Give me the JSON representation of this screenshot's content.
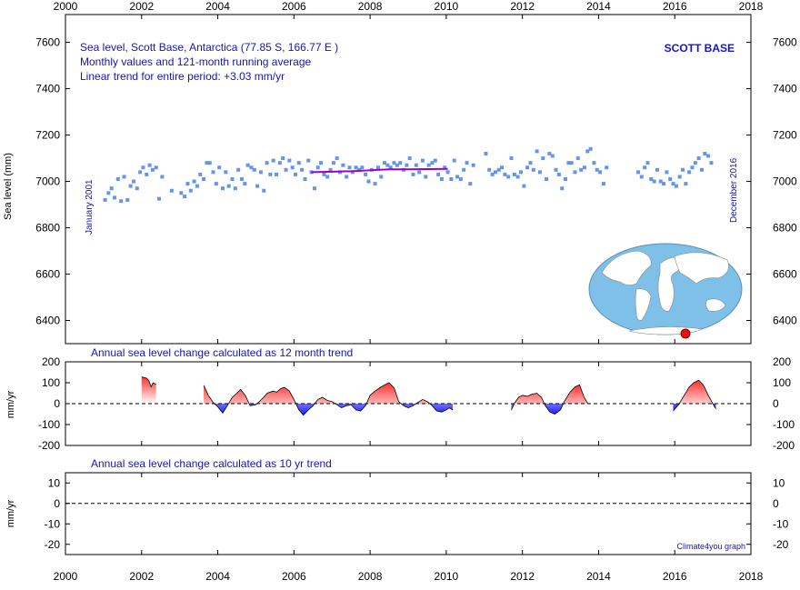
{
  "chart_data": [
    {
      "type": "scatter",
      "title": "Sea level, Scott Base, Antarctica (77.85 S, 166.77 E )",
      "subtitle": "Monthly values and 121-month running average",
      "trend_text": "Linear trend for entire period: +3.03 mm/yr",
      "station_label": "SCOTT BASE",
      "start_label": "January 2001",
      "end_label": "December 2016",
      "ylabel": "Sea level (mm)",
      "xlim": [
        2000,
        2018
      ],
      "ylim": [
        6300,
        7720
      ],
      "x_ticks": [
        "2000",
        "2002",
        "2004",
        "2006",
        "2008",
        "2010",
        "2012",
        "2014",
        "2016",
        "2018"
      ],
      "y_ticks": [
        "6400",
        "6600",
        "6800",
        "7000",
        "7200",
        "7400",
        "7600"
      ],
      "point_color": "#6495ed",
      "running_average_color": "#9b00c8",
      "monthly_points": [
        [
          2001.04,
          6920
        ],
        [
          2001.13,
          6950
        ],
        [
          2001.21,
          6970
        ],
        [
          2001.29,
          6930
        ],
        [
          2001.38,
          7010
        ],
        [
          2001.46,
          6915
        ],
        [
          2001.54,
          7020
        ],
        [
          2001.63,
          6920
        ],
        [
          2001.71,
          6980
        ],
        [
          2001.79,
          7000
        ],
        [
          2001.88,
          6970
        ],
        [
          2001.96,
          7040
        ],
        [
          2002.04,
          7060
        ],
        [
          2002.13,
          7030
        ],
        [
          2002.21,
          7070
        ],
        [
          2002.29,
          7050
        ],
        [
          2002.38,
          7060
        ],
        [
          2002.46,
          6925
        ],
        [
          2002.54,
          7020
        ],
        [
          2002.79,
          6960
        ],
        [
          2003.04,
          6950
        ],
        [
          2003.13,
          6935
        ],
        [
          2003.21,
          6990
        ],
        [
          2003.29,
          6960
        ],
        [
          2003.38,
          7000
        ],
        [
          2003.46,
          6980
        ],
        [
          2003.54,
          7030
        ],
        [
          2003.63,
          7010
        ],
        [
          2003.71,
          7080
        ],
        [
          2003.79,
          7080
        ],
        [
          2003.88,
          7040
        ],
        [
          2003.96,
          6990
        ],
        [
          2004.04,
          7060
        ],
        [
          2004.13,
          6970
        ],
        [
          2004.21,
          7040
        ],
        [
          2004.29,
          6980
        ],
        [
          2004.38,
          7010
        ],
        [
          2004.46,
          6970
        ],
        [
          2004.54,
          7050
        ],
        [
          2004.63,
          7010
        ],
        [
          2004.71,
          6990
        ],
        [
          2004.79,
          7070
        ],
        [
          2004.88,
          7060
        ],
        [
          2004.96,
          7050
        ],
        [
          2005.04,
          6980
        ],
        [
          2005.13,
          7040
        ],
        [
          2005.21,
          6960
        ],
        [
          2005.29,
          7080
        ],
        [
          2005.38,
          7030
        ],
        [
          2005.46,
          7090
        ],
        [
          2005.54,
          7030
        ],
        [
          2005.63,
          7080
        ],
        [
          2005.71,
          7100
        ],
        [
          2005.79,
          7050
        ],
        [
          2005.88,
          7090
        ],
        [
          2005.96,
          7060
        ],
        [
          2006.04,
          7030
        ],
        [
          2006.13,
          7080
        ],
        [
          2006.21,
          7050
        ],
        [
          2006.29,
          7010
        ],
        [
          2006.38,
          7090
        ],
        [
          2006.46,
          7040
        ],
        [
          2006.54,
          6970
        ],
        [
          2006.63,
          7060
        ],
        [
          2006.71,
          7080
        ],
        [
          2006.79,
          7030
        ],
        [
          2006.88,
          7020
        ],
        [
          2006.96,
          7050
        ],
        [
          2007.04,
          7080
        ],
        [
          2007.13,
          7100
        ],
        [
          2007.21,
          7040
        ],
        [
          2007.29,
          7070
        ],
        [
          2007.38,
          7020
        ],
        [
          2007.46,
          7060
        ],
        [
          2007.54,
          7040
        ],
        [
          2007.63,
          7060
        ],
        [
          2007.71,
          7050
        ],
        [
          2007.79,
          7060
        ],
        [
          2007.88,
          7030
        ],
        [
          2007.96,
          7000
        ],
        [
          2008.04,
          7050
        ],
        [
          2008.13,
          6990
        ],
        [
          2008.21,
          7060
        ],
        [
          2008.29,
          7020
        ],
        [
          2008.38,
          7080
        ],
        [
          2008.46,
          7070
        ],
        [
          2008.54,
          7060
        ],
        [
          2008.63,
          7080
        ],
        [
          2008.71,
          7070
        ],
        [
          2008.79,
          7080
        ],
        [
          2008.88,
          7050
        ],
        [
          2008.96,
          7070
        ],
        [
          2009.04,
          7100
        ],
        [
          2009.13,
          7030
        ],
        [
          2009.21,
          7070
        ],
        [
          2009.29,
          7040
        ],
        [
          2009.38,
          7090
        ],
        [
          2009.46,
          7020
        ],
        [
          2009.54,
          7070
        ],
        [
          2009.63,
          7080
        ],
        [
          2009.71,
          7090
        ],
        [
          2009.79,
          7030
        ],
        [
          2009.88,
          7010
        ],
        [
          2009.96,
          7060
        ],
        [
          2010.04,
          7040
        ],
        [
          2010.13,
          7010
        ],
        [
          2010.21,
          7090
        ],
        [
          2010.29,
          7020
        ],
        [
          2010.38,
          7010
        ],
        [
          2010.46,
          7050
        ],
        [
          2010.54,
          7080
        ],
        [
          2010.63,
          6990
        ],
        [
          2010.71,
          7070
        ],
        [
          2011.04,
          7120
        ],
        [
          2011.13,
          7050
        ],
        [
          2011.21,
          7030
        ],
        [
          2011.29,
          7040
        ],
        [
          2011.38,
          7050
        ],
        [
          2011.46,
          7060
        ],
        [
          2011.54,
          7030
        ],
        [
          2011.63,
          7020
        ],
        [
          2011.71,
          7100
        ],
        [
          2011.79,
          7030
        ],
        [
          2011.88,
          7020
        ],
        [
          2011.96,
          7040
        ],
        [
          2012.04,
          6980
        ],
        [
          2012.13,
          7060
        ],
        [
          2012.21,
          7080
        ],
        [
          2012.29,
          7050
        ],
        [
          2012.38,
          7130
        ],
        [
          2012.46,
          7040
        ],
        [
          2012.54,
          7100
        ],
        [
          2012.63,
          7010
        ],
        [
          2012.71,
          7120
        ],
        [
          2012.79,
          7110
        ],
        [
          2012.88,
          7050
        ],
        [
          2012.96,
          7030
        ],
        [
          2013.04,
          6970
        ],
        [
          2013.13,
          7010
        ],
        [
          2013.21,
          7080
        ],
        [
          2013.29,
          7080
        ],
        [
          2013.38,
          7040
        ],
        [
          2013.46,
          7100
        ],
        [
          2013.54,
          7050
        ],
        [
          2013.63,
          7060
        ],
        [
          2013.71,
          7130
        ],
        [
          2013.79,
          7140
        ],
        [
          2013.88,
          7080
        ],
        [
          2013.96,
          7050
        ],
        [
          2014.04,
          7040
        ],
        [
          2014.13,
          6990
        ],
        [
          2014.21,
          7060
        ],
        [
          2015.04,
          7040
        ],
        [
          2015.13,
          7020
        ],
        [
          2015.21,
          7060
        ],
        [
          2015.29,
          7080
        ],
        [
          2015.38,
          7010
        ],
        [
          2015.46,
          7000
        ],
        [
          2015.54,
          7050
        ],
        [
          2015.63,
          7000
        ],
        [
          2015.71,
          6990
        ],
        [
          2015.79,
          7040
        ],
        [
          2015.88,
          7010
        ],
        [
          2015.96,
          6990
        ],
        [
          2016.04,
          6980
        ],
        [
          2016.13,
          7020
        ],
        [
          2016.21,
          7050
        ],
        [
          2016.29,
          6990
        ],
        [
          2016.38,
          7040
        ],
        [
          2016.46,
          7060
        ],
        [
          2016.54,
          7080
        ],
        [
          2016.63,
          7100
        ],
        [
          2016.71,
          7050
        ],
        [
          2016.79,
          7120
        ],
        [
          2016.88,
          7110
        ],
        [
          2016.96,
          7080
        ]
      ],
      "running_average": [
        [
          2006.46,
          7040
        ],
        [
          2007.0,
          7042
        ],
        [
          2007.5,
          7044
        ],
        [
          2008.0,
          7048
        ],
        [
          2008.5,
          7052
        ],
        [
          2009.0,
          7052
        ],
        [
          2009.5,
          7053
        ],
        [
          2010.04,
          7054
        ]
      ]
    },
    {
      "type": "area",
      "title": "Annual sea level change calculated as 12 month trend",
      "ylabel": "mm/yr",
      "xlim": [
        2000,
        2018
      ],
      "ylim": [
        -200,
        200
      ],
      "y_ticks": [
        "200",
        "100",
        "0",
        "-100",
        "-200"
      ],
      "positive_color": "#ff3030",
      "negative_color": "#2020ff",
      "series": [
        [
          [
            2002.0,
            128
          ],
          [
            2002.06,
            125
          ],
          [
            2002.13,
            122
          ],
          [
            2002.19,
            110
          ],
          [
            2002.25,
            80
          ],
          [
            2002.3,
            100
          ],
          [
            2002.38,
            92
          ]
        ],
        [
          [
            2003.63,
            88
          ],
          [
            2003.75,
            40
          ],
          [
            2003.88,
            5
          ],
          [
            2004.0,
            -15
          ],
          [
            2004.13,
            -45
          ],
          [
            2004.25,
            -10
          ],
          [
            2004.38,
            30
          ],
          [
            2004.5,
            50
          ],
          [
            2004.6,
            68
          ],
          [
            2004.72,
            40
          ],
          [
            2004.85,
            -10
          ],
          [
            2005.0,
            -5
          ],
          [
            2005.15,
            20
          ],
          [
            2005.3,
            50
          ],
          [
            2005.45,
            60
          ],
          [
            2005.55,
            55
          ],
          [
            2005.65,
            72
          ],
          [
            2005.75,
            78
          ],
          [
            2005.88,
            60
          ],
          [
            2006.0,
            20
          ],
          [
            2006.13,
            -30
          ],
          [
            2006.25,
            -55
          ],
          [
            2006.38,
            -30
          ],
          [
            2006.5,
            -10
          ],
          [
            2006.63,
            20
          ],
          [
            2006.75,
            30
          ],
          [
            2006.88,
            15
          ],
          [
            2007.0,
            10
          ],
          [
            2007.13,
            -5
          ],
          [
            2007.25,
            -20
          ],
          [
            2007.38,
            -10
          ],
          [
            2007.5,
            -5
          ],
          [
            2007.63,
            -30
          ],
          [
            2007.75,
            -35
          ],
          [
            2007.88,
            -10
          ],
          [
            2008.0,
            40
          ],
          [
            2008.13,
            60
          ],
          [
            2008.25,
            75
          ],
          [
            2008.38,
            90
          ],
          [
            2008.5,
            100
          ],
          [
            2008.63,
            75
          ],
          [
            2008.75,
            10
          ],
          [
            2008.88,
            -10
          ],
          [
            2009.0,
            -20
          ],
          [
            2009.13,
            -10
          ],
          [
            2009.25,
            5
          ],
          [
            2009.38,
            20
          ],
          [
            2009.5,
            10
          ],
          [
            2009.63,
            -10
          ],
          [
            2009.75,
            -35
          ],
          [
            2009.88,
            -40
          ],
          [
            2010.0,
            -30
          ],
          [
            2010.08,
            -20
          ],
          [
            2010.17,
            -30
          ]
        ],
        [
          [
            2011.71,
            -30
          ],
          [
            2011.8,
            5
          ],
          [
            2011.9,
            30
          ],
          [
            2012.0,
            40
          ],
          [
            2012.13,
            35
          ],
          [
            2012.25,
            45
          ],
          [
            2012.38,
            50
          ],
          [
            2012.5,
            30
          ],
          [
            2012.6,
            -10
          ],
          [
            2012.72,
            -40
          ],
          [
            2012.85,
            -50
          ],
          [
            2013.0,
            -30
          ],
          [
            2013.1,
            10
          ],
          [
            2013.25,
            55
          ],
          [
            2013.38,
            80
          ],
          [
            2013.5,
            90
          ],
          [
            2013.62,
            30
          ],
          [
            2013.72,
            0
          ]
        ],
        [
          [
            2015.96,
            -35
          ],
          [
            2016.1,
            -5
          ],
          [
            2016.25,
            40
          ],
          [
            2016.38,
            80
          ],
          [
            2016.5,
            100
          ],
          [
            2016.63,
            112
          ],
          [
            2016.75,
            90
          ],
          [
            2016.88,
            40
          ],
          [
            2017.0,
            0
          ],
          [
            2017.08,
            -25
          ]
        ]
      ]
    },
    {
      "type": "line",
      "title": "Annual sea level change calculated as 10 yr trend",
      "ylabel": "mm/yr",
      "xlim": [
        2000,
        2018
      ],
      "ylim": [
        -25,
        15
      ],
      "y_ticks": [
        "10",
        "0",
        "-10",
        "-20"
      ],
      "series": []
    }
  ],
  "footer": {
    "credit": "Climate4you graph"
  }
}
